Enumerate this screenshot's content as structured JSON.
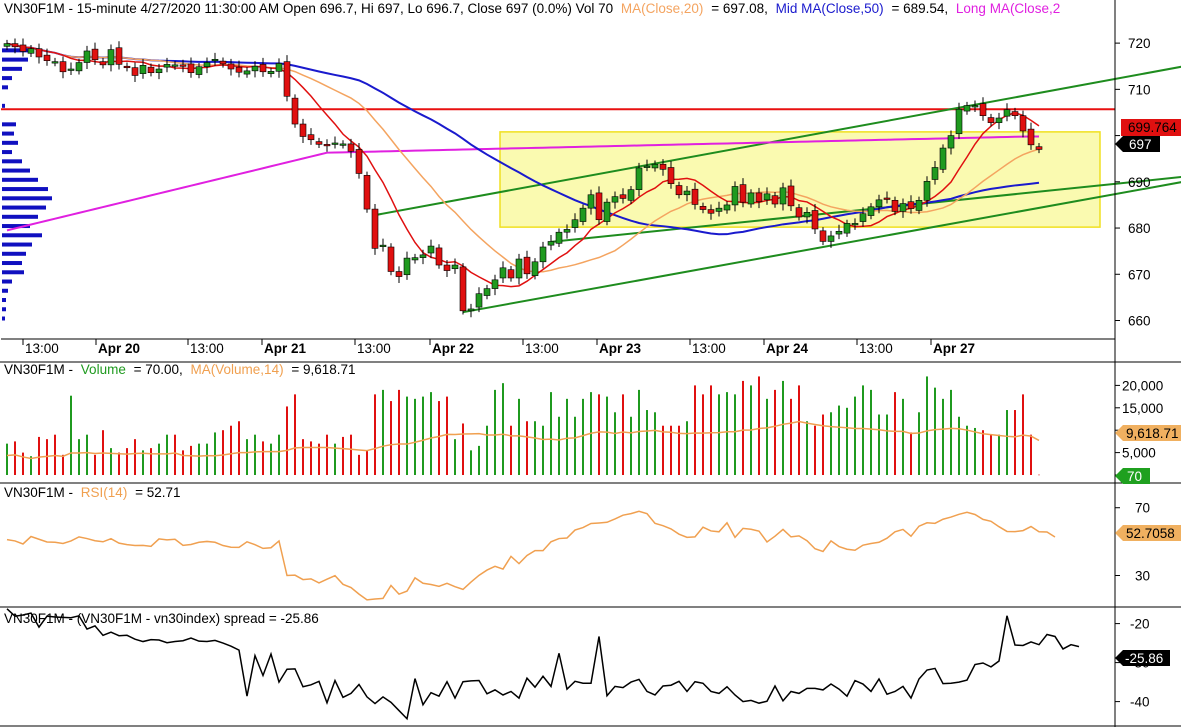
{
  "colors": {
    "up": "#1f9a1f",
    "down": "#e01010",
    "ma20": "#f4a460",
    "ma50": "#1a1acd",
    "ma200": "#e020e0",
    "channel": "#1e8c1e",
    "resistance": "#e81010",
    "zone_fill": "#fafab0",
    "zone_stroke": "#f0e020",
    "rsi": "#f0a050",
    "spread": "#000000",
    "volma": "#f0a050",
    "profile": "#1010c0"
  },
  "header": {
    "main_prefix": "VN30F1M - 15-minute 4/27/2020 11:30:00 AM Open 696.7, Hi 697, Lo 696.7, Close 697 (0.0%) Vol 70",
    "ma20_label": "MA(Close,20)",
    "ma20_value": "= 697.08,",
    "ma50_label": "Mid MA(Close,50)",
    "ma50_value": "= 689.54,",
    "ma200_label": "Long MA(Close,2",
    "vol_prefix": "VN30F1M -",
    "vol_label": "Volume",
    "vol_value": "= 70.00,",
    "volma_label": "MA(Volume,14)",
    "volma_value": "= 9,618.71",
    "rsi_prefix": "VN30F1M -",
    "rsi_label": "RSI(14)",
    "rsi_value": "= 52.71",
    "spread_text": "VN30F1M - (VN30F1M - vn30index) spread = -25.86"
  },
  "badges": {
    "price_ma": "699.764",
    "price_close": "697",
    "volma": "9,618.71",
    "volume": "70",
    "rsi": "52.7058",
    "spread": "-25.86"
  },
  "chart_data": [
    {
      "type": "candlestick",
      "title": "VN30F1M - 15-minute",
      "ylim": [
        656,
        725
      ],
      "y_ticks": [
        660,
        670,
        680,
        690,
        700,
        710,
        720
      ],
      "x_tick_labels": [
        "13:00",
        "Apr 20",
        "13:00",
        "Apr 21",
        "13:00",
        "Apr 22",
        "13:00",
        "Apr 23",
        "13:00",
        "Apr 24",
        "13:00",
        "Apr 27"
      ],
      "close": [
        719.9,
        719.2,
        718.2,
        718.8,
        717.0,
        716.2,
        716.0,
        713.8,
        714.4,
        715.8,
        718.3,
        716.4,
        715.3,
        718.6,
        715.4,
        714.7,
        713.0,
        715.2,
        713.6,
        714.4,
        715.4,
        715.3,
        715.1,
        713.6,
        714.9,
        715.8,
        716.5,
        715.5,
        714.4,
        713.7,
        714.0,
        715.0,
        713.8,
        713.9,
        715.6,
        708.5,
        702.5,
        699.8,
        699.1,
        698.1,
        697.9,
        698.4,
        698.2,
        696.6,
        691.8,
        684.1,
        675.6,
        676.3,
        670.6,
        669.5,
        673.5,
        673.6,
        674.2,
        676.1,
        672.0,
        670.8,
        672.0,
        662.1,
        662.5,
        665.8,
        666.9,
        668.8,
        671.4,
        669.2,
        673.3,
        670.1,
        672.7,
        675.9,
        677.1,
        679.1,
        679.7,
        681.8,
        684.3,
        687.2,
        681.8,
        685.6,
        686.8,
        686.4,
        688.3,
        693.0,
        693.4,
        693.8,
        692.7,
        689.6,
        687.2,
        688.0,
        685.1,
        684.0,
        683.2,
        684.3,
        685.0,
        689.0,
        685.6,
        687.6,
        685.7,
        687.4,
        685.2,
        688.7,
        684.8,
        682.4,
        683.4,
        679.8,
        677.1,
        678.3,
        679.3,
        681.0,
        681.0,
        683.1,
        684.6,
        686.1,
        686.4,
        683.6,
        685.3,
        684.2,
        686.0,
        690.1,
        693.1,
        697.3,
        700.0,
        705.7,
        706.5,
        706.5,
        704.3,
        702.8,
        703.8,
        705.6,
        704.3,
        701.0,
        698.0,
        697.0
      ],
      "series": [
        {
          "name": "MA(Close,20)",
          "value": 697.08
        },
        {
          "name": "Mid MA(Close,50)",
          "value": 689.54
        },
        {
          "name": "Long MA(Close,2",
          "value": 699.764
        }
      ],
      "annotations": {
        "resistance": 705.7,
        "zone": [
          680.2,
          700.8
        ],
        "channel_upper": [
          {
            "bar": 46,
            "price": 682.8
          },
          {
            "bar": 155,
            "price": 717.5
          }
        ],
        "channel_lower": [
          {
            "bar": 57,
            "price": 661.8
          },
          {
            "bar": 155,
            "price": 692.5
          }
        ],
        "mid_channel": [
          {
            "bar": 68,
            "price": 677.0
          },
          {
            "bar": 155,
            "price": 692.5
          }
        ]
      }
    },
    {
      "type": "bar",
      "title": "Volume",
      "ylim": [
        0,
        25000
      ],
      "y_ticks": [
        0,
        5000,
        10000,
        15000,
        20000
      ],
      "y_tick_labels": [
        "0",
        "5,000",
        "10,000",
        "15,000",
        "20,000"
      ],
      "values": [
        7000,
        7500,
        5000,
        4200,
        8500,
        8000,
        9000,
        4500,
        17700,
        8000,
        9000,
        4500,
        10000,
        6000,
        5000,
        6000,
        8000,
        5500,
        6000,
        7000,
        9000,
        9000,
        5500,
        6500,
        7000,
        7000,
        9500,
        10000,
        11000,
        12000,
        8000,
        9000,
        7500,
        7000,
        9000,
        15300,
        18000,
        8000,
        7500,
        7000,
        9000,
        7000,
        8500,
        9000,
        4500,
        5500,
        18000,
        19000,
        16500,
        19000,
        17500,
        17000,
        17500,
        18500,
        16500,
        17500,
        8000,
        11500,
        5500,
        6500,
        11000,
        19000,
        20500,
        11000,
        17000,
        12000,
        12000,
        11000,
        18500,
        13000,
        17000,
        13000,
        17000,
        18500,
        18000,
        17500,
        14000,
        18000,
        13000,
        19000,
        14500,
        14000,
        11000,
        11000,
        11000,
        12000,
        20000,
        18000,
        20000,
        18000,
        18500,
        18000,
        21000,
        20000,
        22000,
        17000,
        19000,
        21000,
        17000,
        20000,
        12000,
        11000,
        13500,
        14000,
        15500,
        15000,
        17500,
        20000,
        19000,
        13500,
        13500,
        18500,
        17000,
        9500,
        14000,
        22000,
        19500,
        17000,
        19000,
        13000,
        11000,
        10500,
        10000,
        9000,
        9000,
        14500,
        14500,
        18000,
        9000,
        70
      ],
      "ma_value": 9618.71
    },
    {
      "type": "line",
      "title": "RSI(14)",
      "ylim": [
        12,
        84
      ],
      "y_ticks": [
        30,
        50,
        70
      ],
      "values": [
        51.2,
        50.4,
        48.6,
        53.0,
        51.4,
        49.8,
        49.6,
        48.9,
        50.4,
        52.8,
        51.8,
        50.5,
        49.9,
        51.7,
        49.1,
        48.2,
        47.7,
        47.8,
        47.2,
        51.6,
        51.0,
        51.4,
        47.8,
        48.3,
        49.6,
        50.1,
        49.6,
        47.7,
        46.7,
        46.6,
        49.9,
        48.2,
        46.0,
        46.4,
        50.4,
        30.0,
        30.2,
        27.6,
        28.0,
        25.6,
        27.8,
        29.9,
        24.8,
        22.9,
        19.0,
        15.6,
        16.1,
        16.5,
        24.1,
        19.0,
        20.8,
        28.6,
        25.4,
        24.7,
        23.6,
        25.4,
        23.4,
        21.8,
        26.1,
        30.1,
        33.2,
        35.4,
        33.8,
        41.3,
        37.0,
        41.8,
        44.7,
        44.7,
        49.9,
        51.8,
        52.1,
        56.8,
        58.3,
        60.7,
        61.0,
        61.4,
        63.4,
        65.6,
        66.5,
        67.9,
        66.5,
        60.8,
        59.4,
        57.5,
        54.4,
        52.5,
        52.8,
        58.5,
        56.3,
        55.8,
        61.1,
        52.5,
        57.8,
        57.3,
        56.2,
        49.8,
        53.2,
        57.2,
        52.8,
        53.4,
        50.5,
        45.8,
        44.2,
        50.4,
        47.1,
        45.5,
        44.9,
        47.9,
        48.9,
        49.6,
        52.0,
        55.8,
        57.2,
        53.2,
        59.1,
        61.1,
        60.8,
        63.2,
        64.5,
        66.1,
        67.3,
        66.0,
        63.1,
        62.0,
        58.8,
        56.0,
        55.9,
        56.5,
        58.9,
        55.8,
        55.7,
        52.7
      ]
    },
    {
      "type": "line",
      "title": "(VN30F1M - vn30index) spread",
      "ylim": [
        -46,
        -16
      ],
      "y_ticks": [
        -40,
        -30,
        -20
      ],
      "values": [
        -16.2,
        -18.1,
        -17.8,
        -17.3,
        -20.9,
        -18.1,
        -18.3,
        -18.4,
        -18.5,
        -18.0,
        -21.4,
        -20.6,
        -23.0,
        -22.2,
        -23.1,
        -23.0,
        -24.0,
        -24.6,
        -24.1,
        -24.2,
        -24.9,
        -24.6,
        -24.4,
        -23.7,
        -24.5,
        -24.6,
        -24.3,
        -25.0,
        -25.8,
        -26.8,
        -38.6,
        -28.2,
        -33.3,
        -27.8,
        -35.0,
        -31.7,
        -31.6,
        -36.2,
        -35.7,
        -34.8,
        -40.3,
        -34.6,
        -38.9,
        -37.9,
        -35.6,
        -38.8,
        -40.5,
        -38.8,
        -40.2,
        -42.3,
        -44.4,
        -34.1,
        -40.8,
        -37.7,
        -38.6,
        -34.9,
        -39.1,
        -34.9,
        -34.7,
        -34.6,
        -38.0,
        -37.0,
        -38.3,
        -37.4,
        -39.1,
        -34.0,
        -36.3,
        -33.5,
        -36.1,
        -27.6,
        -36.8,
        -34.8,
        -35.3,
        -35.3,
        -23.3,
        -38.5,
        -36.1,
        -36.4,
        -35.0,
        -34.3,
        -37.4,
        -38.3,
        -36.0,
        -35.8,
        -34.8,
        -37.4,
        -34.9,
        -35.3,
        -37.4,
        -37.9,
        -36.2,
        -38.3,
        -40.0,
        -39.7,
        -40.4,
        -39.9,
        -36.0,
        -39.8,
        -37.4,
        -37.9,
        -36.6,
        -36.6,
        -37.0,
        -35.5,
        -36.8,
        -38.6,
        -34.6,
        -35.5,
        -37.4,
        -34.2,
        -38.1,
        -37.4,
        -36.1,
        -39.1,
        -34.2,
        -31.9,
        -31.5,
        -35.4,
        -35.3,
        -35.0,
        -34.5,
        -30.5,
        -30.1,
        -31.1,
        -29.6,
        -18.0,
        -25.5,
        -25.6,
        -24.7,
        -25.4,
        -22.8,
        -23.3,
        -26.5,
        -25.4,
        -25.9
      ],
      "value": -25.86
    }
  ]
}
